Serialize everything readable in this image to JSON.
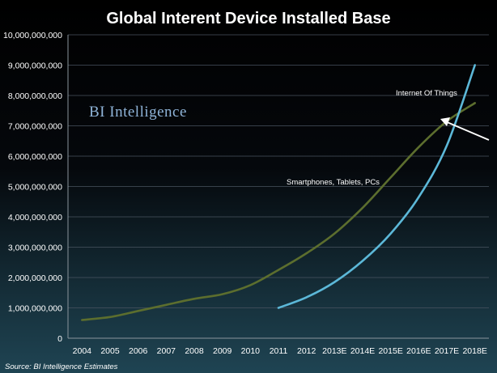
{
  "chart_data": {
    "type": "line",
    "title": "Global Interent Device Installed Base",
    "watermark": "BI Intelligence",
    "source": "Source: BI Intelligence Estimates",
    "categories": [
      "2004",
      "2005",
      "2006",
      "2007",
      "2008",
      "2009",
      "2010",
      "2011",
      "2012",
      "2013E",
      "2014E",
      "2015E",
      "2016E",
      "2017E",
      "2018E"
    ],
    "ylim": [
      0,
      10000000000
    ],
    "yticks": [
      0,
      1000000000,
      2000000000,
      3000000000,
      4000000000,
      5000000000,
      6000000000,
      7000000000,
      8000000000,
      9000000000,
      10000000000
    ],
    "ytick_labels": [
      "0",
      "1,000,000,000",
      "2,000,000,000",
      "3,000,000,000",
      "4,000,000,000",
      "5,000,000,000",
      "6,000,000,000",
      "7,000,000,000",
      "8,000,000,000",
      "9,000,000,000",
      "10,000,000,000"
    ],
    "grid": true,
    "series": [
      {
        "name": "Smartphones, Tablets, PCs",
        "color": "#5c6e2e",
        "values": [
          600000000,
          700000000,
          900000000,
          1100000000,
          1300000000,
          1450000000,
          1750000000,
          2250000000,
          2800000000,
          3450000000,
          4300000000,
          5300000000,
          6300000000,
          7150000000,
          7750000000
        ]
      },
      {
        "name": "Internet Of Things",
        "color": "#5cb8d8",
        "values": [
          null,
          null,
          null,
          null,
          null,
          null,
          null,
          1000000000,
          1350000000,
          1850000000,
          2550000000,
          3450000000,
          4650000000,
          6350000000,
          9000000000
        ]
      }
    ],
    "annotations": [
      {
        "text": "Internet Of Things",
        "series": 1
      },
      {
        "text": "Smartphones, Tablets, PCs",
        "series": 0
      }
    ]
  }
}
